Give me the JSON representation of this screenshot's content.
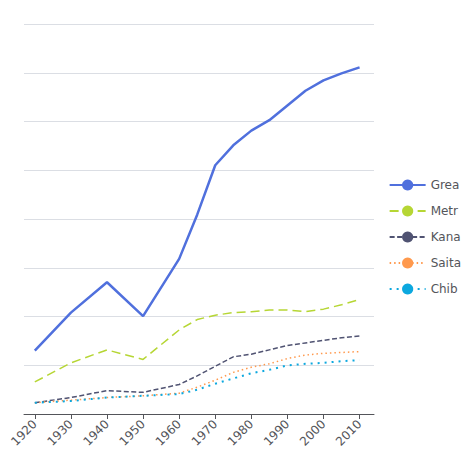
{
  "chart_data": {
    "type": "line",
    "x": [
      1920,
      1930,
      1940,
      1950,
      1960,
      1965,
      1970,
      1975,
      1980,
      1985,
      1990,
      1995,
      2000,
      2005,
      2010
    ],
    "series": [
      {
        "name": "Grea",
        "line_style": "solid",
        "values": [
          7.3,
          11.7,
          15.2,
          11.3,
          17.9,
          23.0,
          28.7,
          31.0,
          32.7,
          33.9,
          35.6,
          37.3,
          38.5,
          39.3,
          40.0
        ]
      },
      {
        "name": "Metr",
        "line_style": "longdash",
        "values": [
          3.7,
          5.9,
          7.4,
          6.3,
          9.7,
          10.9,
          11.4,
          11.7,
          11.8,
          12.0,
          12.0,
          11.8,
          12.1,
          12.6,
          13.2
        ]
      },
      {
        "name": "Kana",
        "line_style": "dashed",
        "values": [
          1.3,
          1.9,
          2.7,
          2.5,
          3.4,
          4.4,
          5.5,
          6.6,
          6.9,
          7.4,
          7.9,
          8.2,
          8.5,
          8.8,
          9.0
        ]
      },
      {
        "name": "Saita",
        "line_style": "dotted",
        "values": [
          1.3,
          1.6,
          1.9,
          2.1,
          2.4,
          3.1,
          3.9,
          4.8,
          5.4,
          5.8,
          6.4,
          6.8,
          7.0,
          7.1,
          7.2
        ]
      },
      {
        "name": "Chib",
        "line_style": "sparsedotted",
        "values": [
          1.3,
          1.5,
          1.9,
          2.1,
          2.3,
          2.8,
          3.5,
          4.1,
          4.7,
          5.1,
          5.6,
          5.8,
          5.9,
          6.1,
          6.2
        ]
      }
    ],
    "xlim": [
      1917,
      2014
    ],
    "xticks": [
      1920,
      1930,
      1940,
      1950,
      1960,
      1970,
      1980,
      1990,
      2000,
      2010
    ],
    "ylim": [
      0,
      45
    ],
    "yticks": [
      0,
      5.625,
      11.25,
      16.875,
      22.5,
      28.125,
      33.75,
      39.375,
      45
    ],
    "grid": true,
    "tick_labels": "x",
    "legend": "right"
  }
}
